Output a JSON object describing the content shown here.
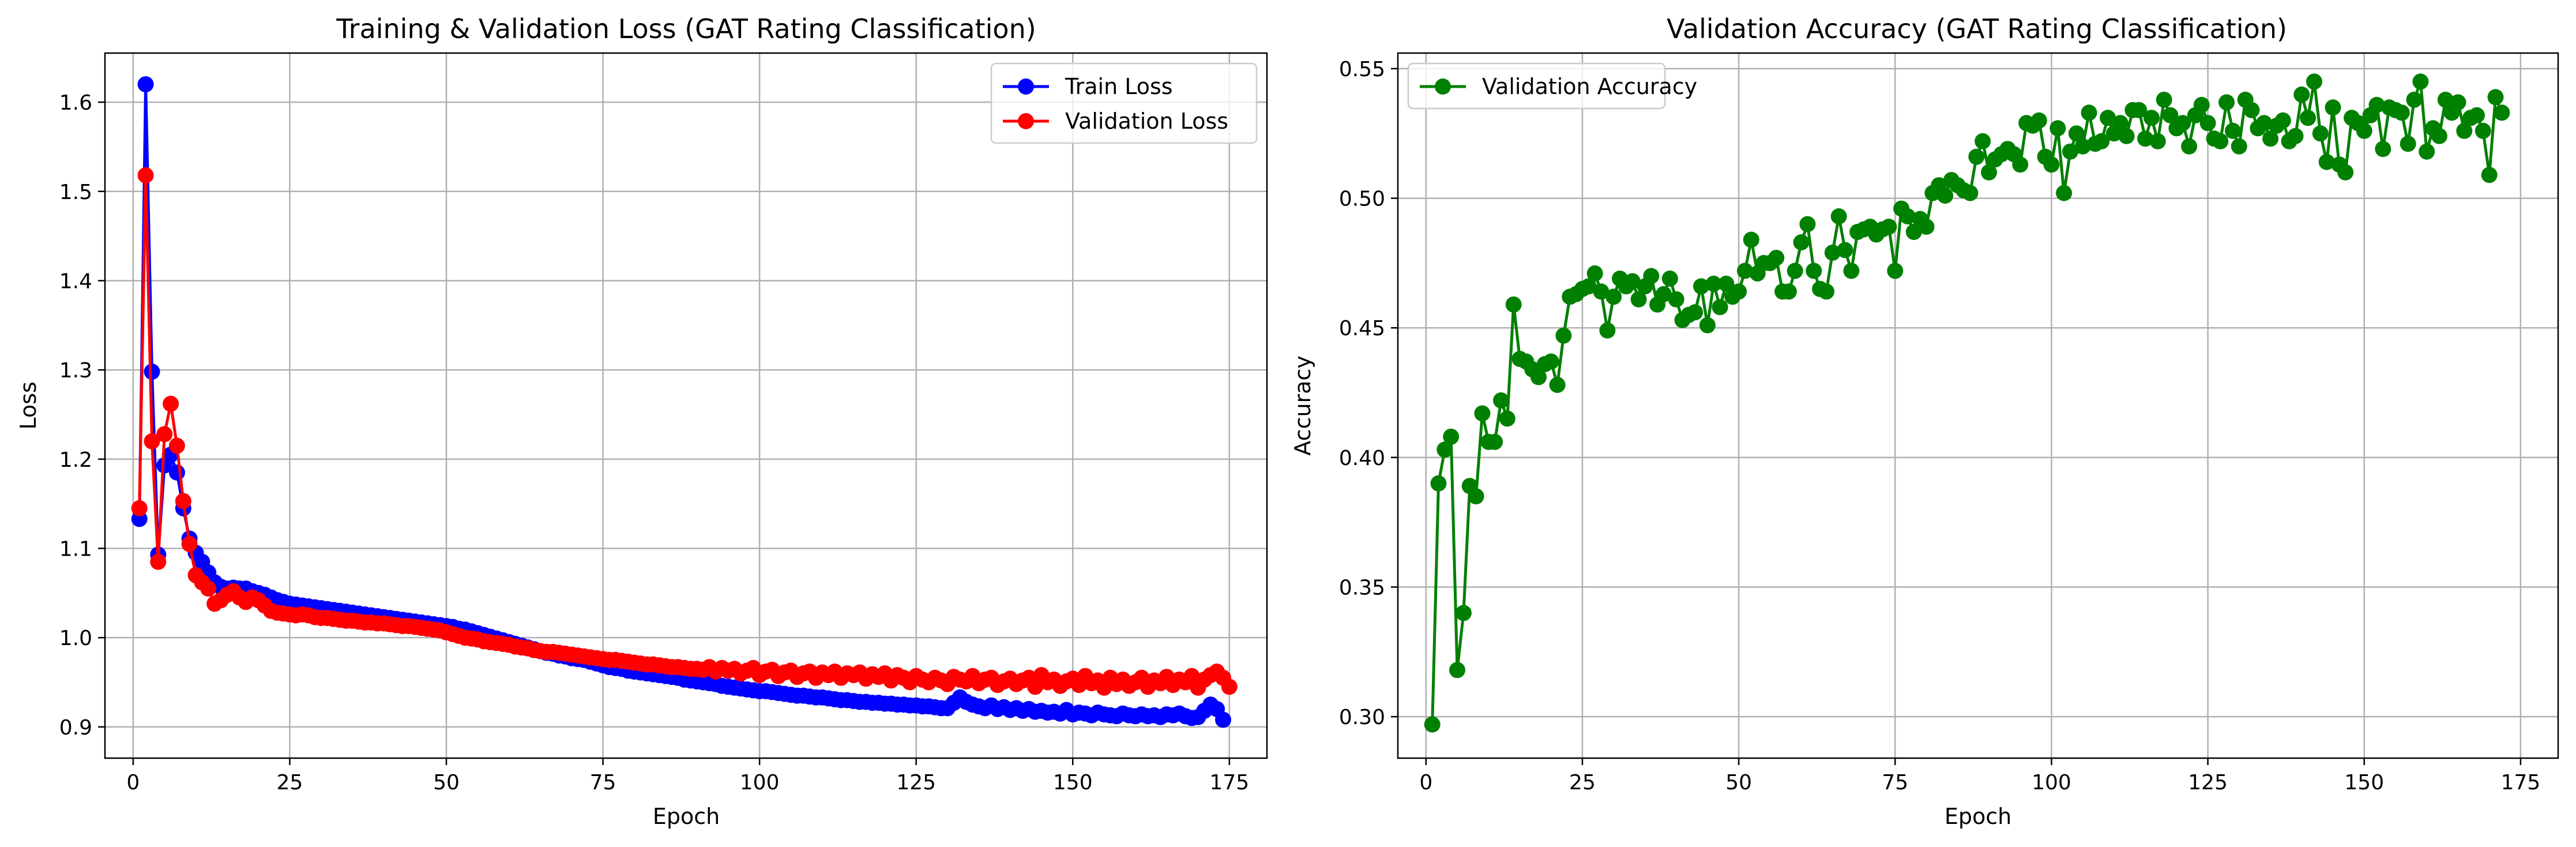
{
  "chart_data": [
    {
      "type": "line",
      "title": "Training & Validation Loss (GAT Rating Classification)",
      "xlabel": "Epoch",
      "ylabel": "Loss",
      "xlim": [
        -4.5,
        181
      ],
      "ylim": [
        0.865,
        1.655
      ],
      "xticks": [
        0,
        25,
        50,
        75,
        100,
        125,
        150,
        175
      ],
      "yticks": [
        0.9,
        1.0,
        1.1,
        1.2,
        1.3,
        1.4,
        1.5,
        1.6
      ],
      "ytick_format": 1,
      "grid": true,
      "legend_position": "top-right",
      "x_start": 1,
      "series": [
        {
          "name": "Train Loss",
          "color": "#0000ff",
          "values": [
            1.133,
            1.62,
            1.298,
            1.093,
            1.193,
            1.205,
            1.185,
            1.145,
            1.111,
            1.095,
            1.085,
            1.073,
            1.062,
            1.057,
            1.055,
            1.056,
            1.055,
            1.055,
            1.052,
            1.05,
            1.048,
            1.045,
            1.042,
            1.04,
            1.038,
            1.037,
            1.036,
            1.035,
            1.034,
            1.033,
            1.032,
            1.031,
            1.03,
            1.029,
            1.028,
            1.027,
            1.026,
            1.025,
            1.024,
            1.023,
            1.022,
            1.021,
            1.02,
            1.019,
            1.018,
            1.017,
            1.016,
            1.015,
            1.014,
            1.013,
            1.012,
            1.01,
            1.009,
            1.007,
            1.005,
            1.003,
            1.001,
            0.999,
            0.997,
            0.995,
            0.993,
            0.991,
            0.989,
            0.987,
            0.985,
            0.983,
            0.982,
            0.98,
            0.979,
            0.977,
            0.976,
            0.975,
            0.973,
            0.971,
            0.969,
            0.967,
            0.966,
            0.965,
            0.963,
            0.962,
            0.961,
            0.96,
            0.959,
            0.958,
            0.957,
            0.956,
            0.955,
            0.953,
            0.952,
            0.951,
            0.95,
            0.949,
            0.948,
            0.946,
            0.945,
            0.944,
            0.943,
            0.942,
            0.941,
            0.94,
            0.94,
            0.939,
            0.938,
            0.937,
            0.936,
            0.935,
            0.935,
            0.934,
            0.933,
            0.933,
            0.932,
            0.931,
            0.93,
            0.93,
            0.929,
            0.928,
            0.928,
            0.927,
            0.927,
            0.926,
            0.926,
            0.925,
            0.925,
            0.924,
            0.924,
            0.923,
            0.923,
            0.922,
            0.921,
            0.921,
            0.927,
            0.933,
            0.928,
            0.925,
            0.923,
            0.921,
            0.924,
            0.92,
            0.922,
            0.919,
            0.921,
            0.918,
            0.92,
            0.917,
            0.918,
            0.916,
            0.917,
            0.915,
            0.919,
            0.914,
            0.916,
            0.915,
            0.913,
            0.916,
            0.914,
            0.913,
            0.912,
            0.915,
            0.913,
            0.912,
            0.914,
            0.912,
            0.913,
            0.911,
            0.914,
            0.913,
            0.915,
            0.912,
            0.91,
            0.911,
            0.918,
            0.925,
            0.92,
            0.908
          ]
        },
        {
          "name": "Validation Loss",
          "color": "#ff0000",
          "values": [
            1.145,
            1.518,
            1.22,
            1.085,
            1.228,
            1.262,
            1.215,
            1.153,
            1.105,
            1.07,
            1.062,
            1.055,
            1.038,
            1.042,
            1.048,
            1.052,
            1.045,
            1.04,
            1.045,
            1.042,
            1.036,
            1.03,
            1.028,
            1.027,
            1.026,
            1.025,
            1.026,
            1.025,
            1.023,
            1.022,
            1.022,
            1.021,
            1.02,
            1.019,
            1.019,
            1.018,
            1.017,
            1.017,
            1.016,
            1.016,
            1.015,
            1.014,
            1.013,
            1.013,
            1.012,
            1.011,
            1.01,
            1.009,
            1.008,
            1.006,
            1.004,
            1.002,
            1.0,
            0.999,
            0.998,
            0.996,
            0.995,
            0.994,
            0.993,
            0.992,
            0.99,
            0.989,
            0.988,
            0.986,
            0.985,
            0.984,
            0.984,
            0.983,
            0.982,
            0.981,
            0.98,
            0.979,
            0.978,
            0.977,
            0.976,
            0.975,
            0.975,
            0.974,
            0.973,
            0.972,
            0.971,
            0.97,
            0.97,
            0.969,
            0.968,
            0.967,
            0.967,
            0.966,
            0.965,
            0.965,
            0.964,
            0.967,
            0.962,
            0.966,
            0.963,
            0.965,
            0.96,
            0.963,
            0.966,
            0.958,
            0.962,
            0.964,
            0.957,
            0.961,
            0.963,
            0.956,
            0.96,
            0.962,
            0.955,
            0.961,
            0.958,
            0.962,
            0.955,
            0.96,
            0.958,
            0.961,
            0.954,
            0.959,
            0.956,
            0.96,
            0.952,
            0.958,
            0.955,
            0.95,
            0.957,
            0.953,
            0.95,
            0.955,
            0.952,
            0.948,
            0.956,
            0.953,
            0.951,
            0.957,
            0.949,
            0.953,
            0.955,
            0.947,
            0.951,
            0.954,
            0.948,
            0.952,
            0.955,
            0.945,
            0.958,
            0.95,
            0.953,
            0.946,
            0.951,
            0.954,
            0.947,
            0.957,
            0.949,
            0.952,
            0.944,
            0.955,
            0.948,
            0.953,
            0.946,
            0.95,
            0.955,
            0.945,
            0.952,
            0.949,
            0.956,
            0.947,
            0.953,
            0.95,
            0.957,
            0.944,
            0.953,
            0.958,
            0.962,
            0.955,
            0.945
          ]
        }
      ]
    },
    {
      "type": "line",
      "title": "Validation Accuracy (GAT Rating Classification)",
      "xlabel": "Epoch",
      "ylabel": "Accuracy",
      "xlim": [
        -4.5,
        181
      ],
      "ylim": [
        0.284,
        0.556
      ],
      "xticks": [
        0,
        25,
        50,
        75,
        100,
        125,
        150,
        175
      ],
      "yticks": [
        0.3,
        0.35,
        0.4,
        0.45,
        0.5,
        0.55
      ],
      "ytick_format": 2,
      "grid": true,
      "legend_position": "top-left",
      "x_start": 1,
      "series": [
        {
          "name": "Validation Accuracy",
          "color": "#008000",
          "values": [
            0.297,
            0.39,
            0.403,
            0.408,
            0.318,
            0.34,
            0.389,
            0.385,
            0.417,
            0.406,
            0.406,
            0.422,
            0.415,
            0.459,
            0.438,
            0.437,
            0.434,
            0.431,
            0.436,
            0.437,
            0.428,
            0.447,
            0.462,
            0.463,
            0.465,
            0.466,
            0.471,
            0.464,
            0.449,
            0.462,
            0.469,
            0.466,
            0.468,
            0.461,
            0.466,
            0.47,
            0.459,
            0.463,
            0.469,
            0.461,
            0.453,
            0.455,
            0.456,
            0.466,
            0.451,
            0.467,
            0.458,
            0.467,
            0.462,
            0.464,
            0.472,
            0.484,
            0.471,
            0.475,
            0.475,
            0.477,
            0.464,
            0.464,
            0.472,
            0.483,
            0.49,
            0.472,
            0.465,
            0.464,
            0.479,
            0.493,
            0.48,
            0.472,
            0.487,
            0.488,
            0.489,
            0.486,
            0.488,
            0.489,
            0.472,
            0.496,
            0.493,
            0.487,
            0.492,
            0.489,
            0.502,
            0.505,
            0.501,
            0.507,
            0.505,
            0.503,
            0.502,
            0.516,
            0.522,
            0.51,
            0.515,
            0.517,
            0.519,
            0.517,
            0.513,
            0.529,
            0.528,
            0.53,
            0.516,
            0.513,
            0.527,
            0.502,
            0.518,
            0.525,
            0.52,
            0.533,
            0.521,
            0.522,
            0.531,
            0.525,
            0.529,
            0.524,
            0.534,
            0.534,
            0.523,
            0.531,
            0.522,
            0.538,
            0.532,
            0.527,
            0.529,
            0.52,
            0.532,
            0.536,
            0.529,
            0.523,
            0.522,
            0.537,
            0.526,
            0.52,
            0.538,
            0.534,
            0.527,
            0.529,
            0.523,
            0.528,
            0.53,
            0.522,
            0.524,
            0.54,
            0.531,
            0.545,
            0.525,
            0.514,
            0.535,
            0.513,
            0.51,
            0.531,
            0.529,
            0.526,
            0.532,
            0.536,
            0.519,
            0.535,
            0.534,
            0.533,
            0.521,
            0.538,
            0.545,
            0.518,
            0.527,
            0.524,
            0.538,
            0.533,
            0.537,
            0.526,
            0.531,
            0.532,
            0.526,
            0.509,
            0.539,
            0.533
          ]
        }
      ]
    }
  ]
}
